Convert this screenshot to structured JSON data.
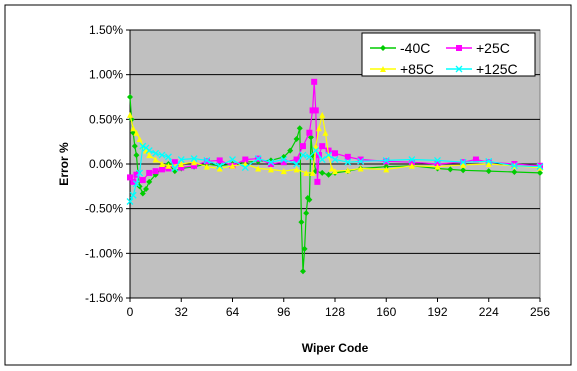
{
  "chart_data": {
    "type": "line",
    "title": "",
    "xlabel": "Wiper Code",
    "ylabel": "Error %",
    "xlim": [
      0,
      256
    ],
    "ylim": [
      -1.5,
      1.5
    ],
    "x_ticks": [
      0,
      32,
      64,
      96,
      128,
      160,
      192,
      224,
      256
    ],
    "x_tick_labels": [
      "0",
      "32",
      "64",
      "96",
      "128",
      "160",
      "192",
      "224",
      "256"
    ],
    "y_ticks": [
      1.5,
      1.0,
      0.5,
      0.0,
      -0.5,
      -1.0,
      -1.5
    ],
    "y_tick_labels": [
      "1.50%",
      "1.00%",
      "0.50%",
      "0.00%",
      "-0.50%",
      "-1.00%",
      "-1.50%"
    ],
    "grid": "horizontal",
    "plot_background": "#c0c0c0",
    "legend_position": "top-right",
    "series": [
      {
        "name": "-40C",
        "color": "#00cc00",
        "marker": "diamond",
        "points": [
          [
            0,
            0.75
          ],
          [
            1,
            0.5
          ],
          [
            2,
            0.35
          ],
          [
            3,
            0.2
          ],
          [
            4,
            0.1
          ],
          [
            5,
            -0.1
          ],
          [
            6,
            -0.25
          ],
          [
            8,
            -0.33
          ],
          [
            10,
            -0.28
          ],
          [
            12,
            -0.2
          ],
          [
            16,
            -0.12
          ],
          [
            20,
            -0.05
          ],
          [
            24,
            0.0
          ],
          [
            28,
            -0.08
          ],
          [
            32,
            -0.05
          ],
          [
            40,
            -0.03
          ],
          [
            48,
            0.0
          ],
          [
            56,
            -0.02
          ],
          [
            64,
            0.0
          ],
          [
            72,
            0.02
          ],
          [
            80,
            0.03
          ],
          [
            88,
            0.04
          ],
          [
            96,
            0.08
          ],
          [
            100,
            0.15
          ],
          [
            104,
            0.28
          ],
          [
            106,
            0.4
          ],
          [
            107,
            -0.65
          ],
          [
            108,
            -1.2
          ],
          [
            109,
            -0.95
          ],
          [
            110,
            -0.55
          ],
          [
            111,
            -0.38
          ],
          [
            112,
            -0.4
          ],
          [
            113,
            0.3
          ],
          [
            114,
            0.1
          ],
          [
            116,
            -0.08
          ],
          [
            120,
            -0.1
          ],
          [
            124,
            -0.12
          ],
          [
            128,
            -0.1
          ],
          [
            136,
            -0.08
          ],
          [
            144,
            -0.05
          ],
          [
            160,
            -0.03
          ],
          [
            176,
            -0.02
          ],
          [
            192,
            -0.05
          ],
          [
            200,
            -0.06
          ],
          [
            208,
            -0.07
          ],
          [
            224,
            -0.08
          ],
          [
            240,
            -0.09
          ],
          [
            256,
            -0.1
          ]
        ]
      },
      {
        "name": "+25C",
        "color": "#ff00ff",
        "marker": "square",
        "points": [
          [
            0,
            -0.15
          ],
          [
            2,
            -0.2
          ],
          [
            4,
            -0.12
          ],
          [
            8,
            -0.18
          ],
          [
            12,
            -0.1
          ],
          [
            16,
            -0.08
          ],
          [
            20,
            -0.06
          ],
          [
            24,
            -0.05
          ],
          [
            28,
            0.02
          ],
          [
            32,
            -0.04
          ],
          [
            40,
            -0.02
          ],
          [
            48,
            0.03
          ],
          [
            56,
            0.04
          ],
          [
            64,
            -0.02
          ],
          [
            72,
            0.05
          ],
          [
            80,
            0.06
          ],
          [
            88,
            0.0
          ],
          [
            96,
            0.02
          ],
          [
            104,
            0.05
          ],
          [
            108,
            0.2
          ],
          [
            112,
            0.35
          ],
          [
            114,
            0.6
          ],
          [
            115,
            0.92
          ],
          [
            116,
            0.6
          ],
          [
            117,
            -0.2
          ],
          [
            118,
            0.1
          ],
          [
            120,
            0.2
          ],
          [
            124,
            0.15
          ],
          [
            128,
            0.12
          ],
          [
            136,
            0.08
          ],
          [
            144,
            0.05
          ],
          [
            160,
            0.03
          ],
          [
            176,
            0.02
          ],
          [
            192,
            0.0
          ],
          [
            208,
            0.02
          ],
          [
            216,
            0.05
          ],
          [
            224,
            0.02
          ],
          [
            240,
            0.0
          ],
          [
            256,
            -0.02
          ]
        ]
      },
      {
        "name": "+85C",
        "color": "#ffff00",
        "marker": "triangle",
        "points": [
          [
            0,
            0.55
          ],
          [
            2,
            0.4
          ],
          [
            4,
            0.35
          ],
          [
            6,
            0.28
          ],
          [
            8,
            0.2
          ],
          [
            10,
            0.15
          ],
          [
            12,
            0.1
          ],
          [
            16,
            0.05
          ],
          [
            20,
            0.0
          ],
          [
            24,
            -0.02
          ],
          [
            32,
            0.0
          ],
          [
            40,
            0.02
          ],
          [
            48,
            -0.03
          ],
          [
            56,
            -0.05
          ],
          [
            64,
            -0.02
          ],
          [
            72,
            0.0
          ],
          [
            80,
            -0.05
          ],
          [
            88,
            -0.06
          ],
          [
            96,
            -0.08
          ],
          [
            104,
            -0.06
          ],
          [
            110,
            -0.1
          ],
          [
            114,
            -0.1
          ],
          [
            116,
            0.2
          ],
          [
            118,
            0.4
          ],
          [
            120,
            0.55
          ],
          [
            122,
            0.35
          ],
          [
            124,
            0.1
          ],
          [
            126,
            -0.05
          ],
          [
            128,
            -0.08
          ],
          [
            136,
            -0.07
          ],
          [
            144,
            -0.05
          ],
          [
            160,
            -0.06
          ],
          [
            176,
            -0.02
          ],
          [
            192,
            -0.03
          ],
          [
            208,
            -0.01
          ],
          [
            224,
            0.0
          ],
          [
            240,
            -0.02
          ],
          [
            256,
            -0.04
          ]
        ]
      },
      {
        "name": "+125C",
        "color": "#00ffff",
        "marker": "cross",
        "points": [
          [
            0,
            -0.42
          ],
          [
            2,
            -0.35
          ],
          [
            4,
            -0.22
          ],
          [
            6,
            -0.1
          ],
          [
            8,
            0.2
          ],
          [
            10,
            0.18
          ],
          [
            12,
            0.15
          ],
          [
            16,
            0.12
          ],
          [
            20,
            0.1
          ],
          [
            24,
            0.08
          ],
          [
            28,
            -0.05
          ],
          [
            32,
            0.05
          ],
          [
            40,
            0.06
          ],
          [
            48,
            0.04
          ],
          [
            56,
            -0.02
          ],
          [
            64,
            0.05
          ],
          [
            72,
            -0.04
          ],
          [
            80,
            0.06
          ],
          [
            88,
            0.02
          ],
          [
            96,
            0.05
          ],
          [
            104,
            0.0
          ],
          [
            108,
            0.1
          ],
          [
            112,
            0.08
          ],
          [
            116,
            0.15
          ],
          [
            120,
            0.05
          ],
          [
            124,
            0.1
          ],
          [
            128,
            0.05
          ],
          [
            136,
            0.02
          ],
          [
            144,
            0.03
          ],
          [
            160,
            0.04
          ],
          [
            176,
            0.05
          ],
          [
            192,
            0.04
          ],
          [
            208,
            0.02
          ],
          [
            224,
            0.03
          ],
          [
            240,
            -0.02
          ],
          [
            256,
            -0.03
          ]
        ]
      }
    ]
  }
}
